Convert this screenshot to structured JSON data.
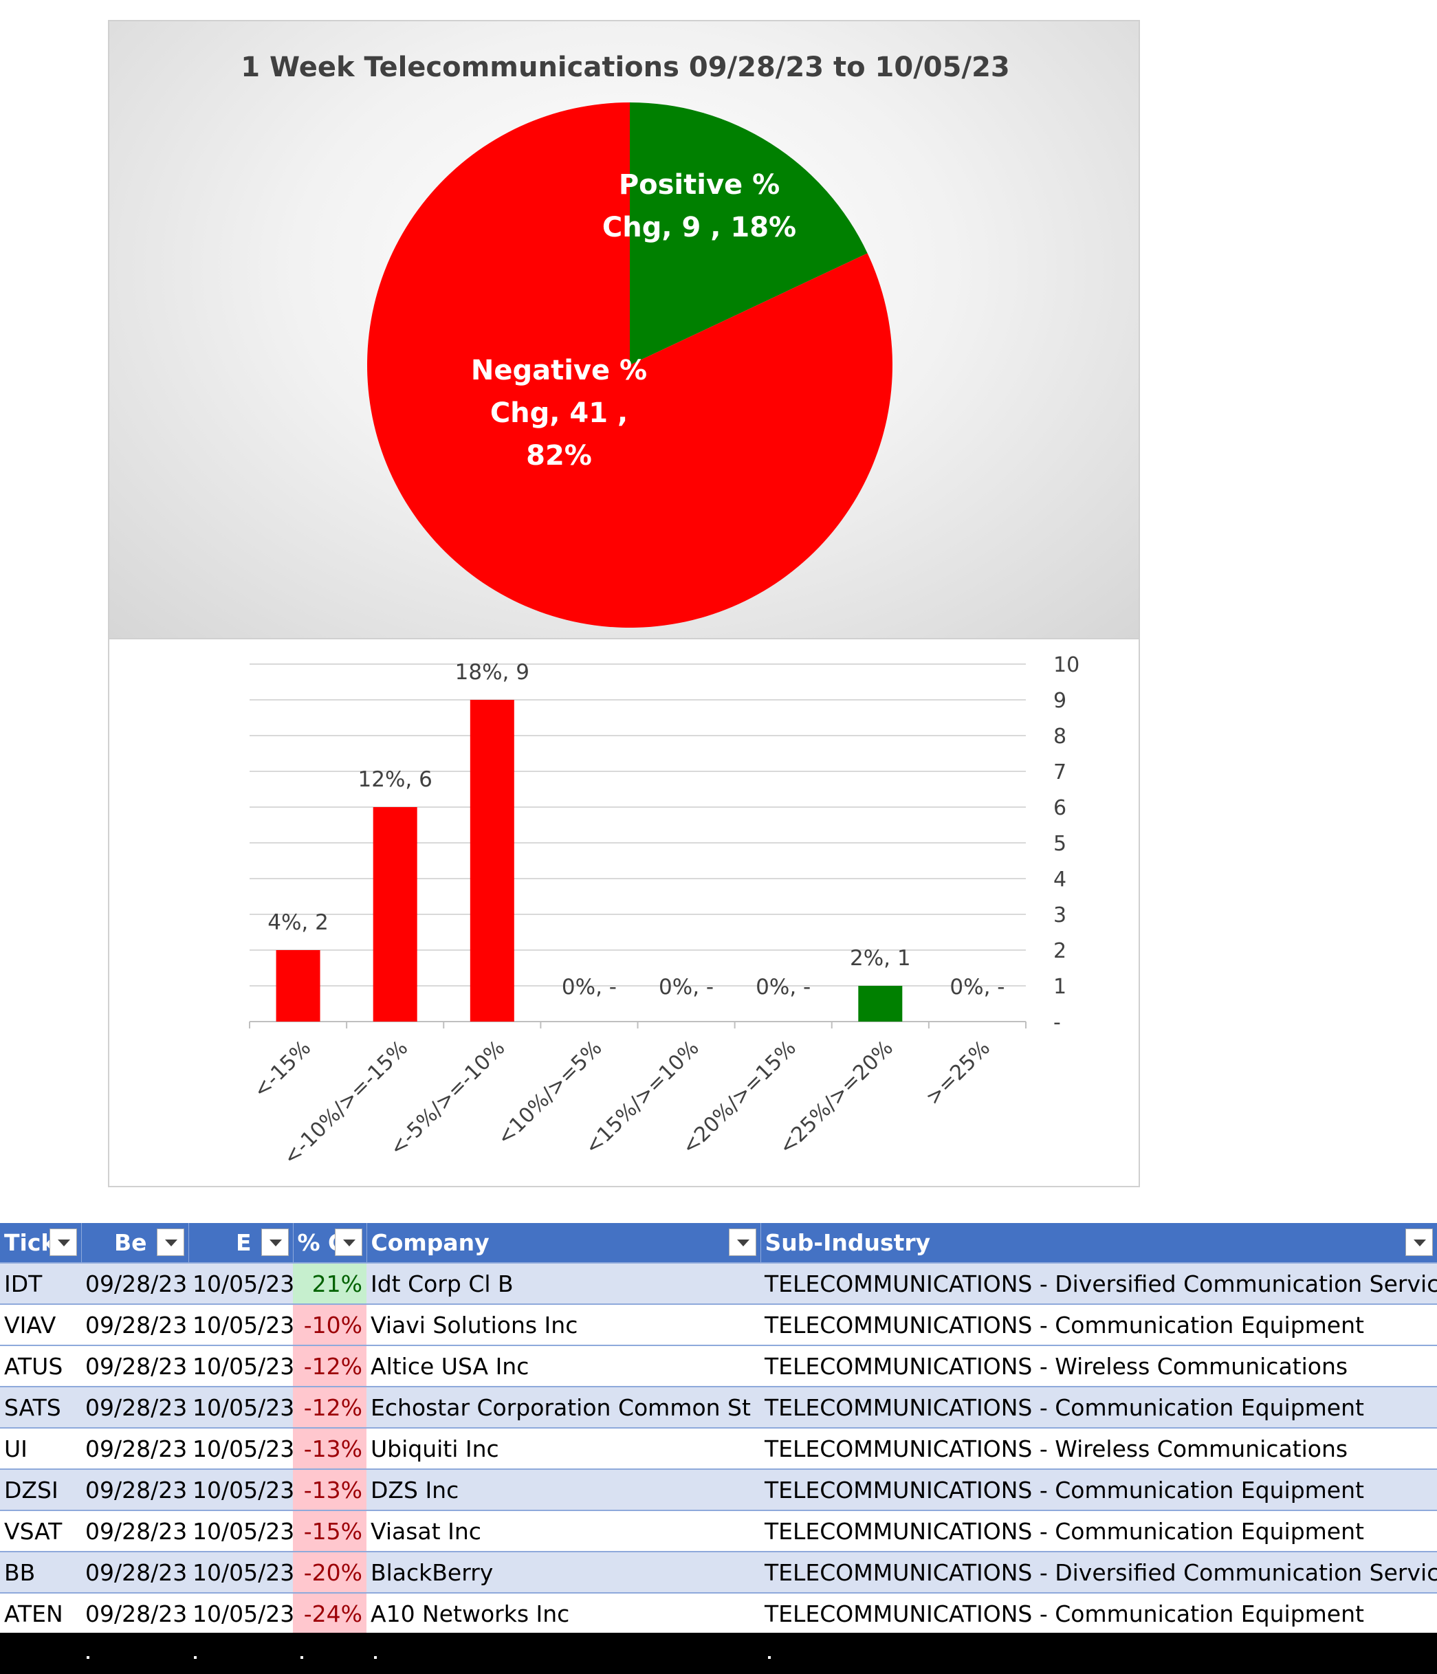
{
  "chart_data": [
    {
      "type": "pie",
      "title": "1 Week Telecommunications 09/28/23 to 10/05/23",
      "slices": [
        {
          "label_lines": [
            "Positive %",
            "Chg,  9 , 18%"
          ],
          "name": "Positive % Chg",
          "value": 9,
          "percent": 18,
          "color": "#008000"
        },
        {
          "label_lines": [
            "Negative %",
            "Chg,  41 ,",
            "82%"
          ],
          "name": "Negative % Chg",
          "value": 41,
          "percent": 82,
          "color": "#ff0000"
        }
      ]
    },
    {
      "type": "bar",
      "categories": [
        "<-15%",
        "<-10%/>=-15%",
        "<-5%/>=-10%",
        "<10%/>=5%",
        "<15%/>=10%",
        "<20%/>=15%",
        "<25%/>=20%",
        ">=25%"
      ],
      "values": [
        2,
        6,
        9,
        0,
        0,
        0,
        1,
        0
      ],
      "data_labels": [
        "4%,  2",
        "12%,  6",
        "18%,  9",
        "0%,  -",
        "0%,  -",
        "0%,  -",
        "2%,  1",
        "0%,  -"
      ],
      "colors": [
        "#ff0000",
        "#ff0000",
        "#ff0000",
        "#ff0000",
        "#ff0000",
        "#ff0000",
        "#008000",
        "#008000"
      ],
      "ylim": [
        0,
        10
      ],
      "y_tick_labels": [
        "-",
        "1",
        "2",
        "3",
        "4",
        "5",
        "6",
        "7",
        "8",
        "9",
        "10"
      ],
      "y_axis_side": "right",
      "grid": true
    }
  ],
  "table": {
    "headers": [
      "Tick",
      "Be",
      "E",
      "% C",
      "Company",
      "Sub-Industry"
    ],
    "rows": [
      {
        "ticker": "IDT",
        "begin": "09/28/23",
        "end": "10/05/23",
        "pct": "21%",
        "positive": true,
        "company": "Idt Corp Cl B",
        "sub_industry": "TELECOMMUNICATIONS - Diversified Communication Services"
      },
      {
        "ticker": "VIAV",
        "begin": "09/28/23",
        "end": "10/05/23",
        "pct": "-10%",
        "positive": false,
        "company": "Viavi Solutions Inc",
        "sub_industry": "TELECOMMUNICATIONS - Communication Equipment"
      },
      {
        "ticker": "ATUS",
        "begin": "09/28/23",
        "end": "10/05/23",
        "pct": "-12%",
        "positive": false,
        "company": "Altice USA Inc",
        "sub_industry": "TELECOMMUNICATIONS - Wireless Communications"
      },
      {
        "ticker": "SATS",
        "begin": "09/28/23",
        "end": "10/05/23",
        "pct": "-12%",
        "positive": false,
        "company": "Echostar Corporation Common St",
        "sub_industry": "TELECOMMUNICATIONS - Communication Equipment"
      },
      {
        "ticker": "UI",
        "begin": "09/28/23",
        "end": "10/05/23",
        "pct": "-13%",
        "positive": false,
        "company": "Ubiquiti Inc",
        "sub_industry": "TELECOMMUNICATIONS - Wireless Communications"
      },
      {
        "ticker": "DZSI",
        "begin": "09/28/23",
        "end": "10/05/23",
        "pct": "-13%",
        "positive": false,
        "company": "DZS Inc",
        "sub_industry": "TELECOMMUNICATIONS - Communication Equipment"
      },
      {
        "ticker": "VSAT",
        "begin": "09/28/23",
        "end": "10/05/23",
        "pct": "-15%",
        "positive": false,
        "company": "Viasat Inc",
        "sub_industry": "TELECOMMUNICATIONS - Communication Equipment"
      },
      {
        "ticker": "BB",
        "begin": "09/28/23",
        "end": "10/05/23",
        "pct": "-20%",
        "positive": false,
        "company": "BlackBerry",
        "sub_industry": "TELECOMMUNICATIONS - Diversified Communication Services"
      },
      {
        "ticker": "ATEN",
        "begin": "09/28/23",
        "end": "10/05/23",
        "pct": "-24%",
        "positive": false,
        "company": "A10 Networks Inc",
        "sub_industry": "TELECOMMUNICATIONS - Communication Equipment"
      }
    ]
  }
}
